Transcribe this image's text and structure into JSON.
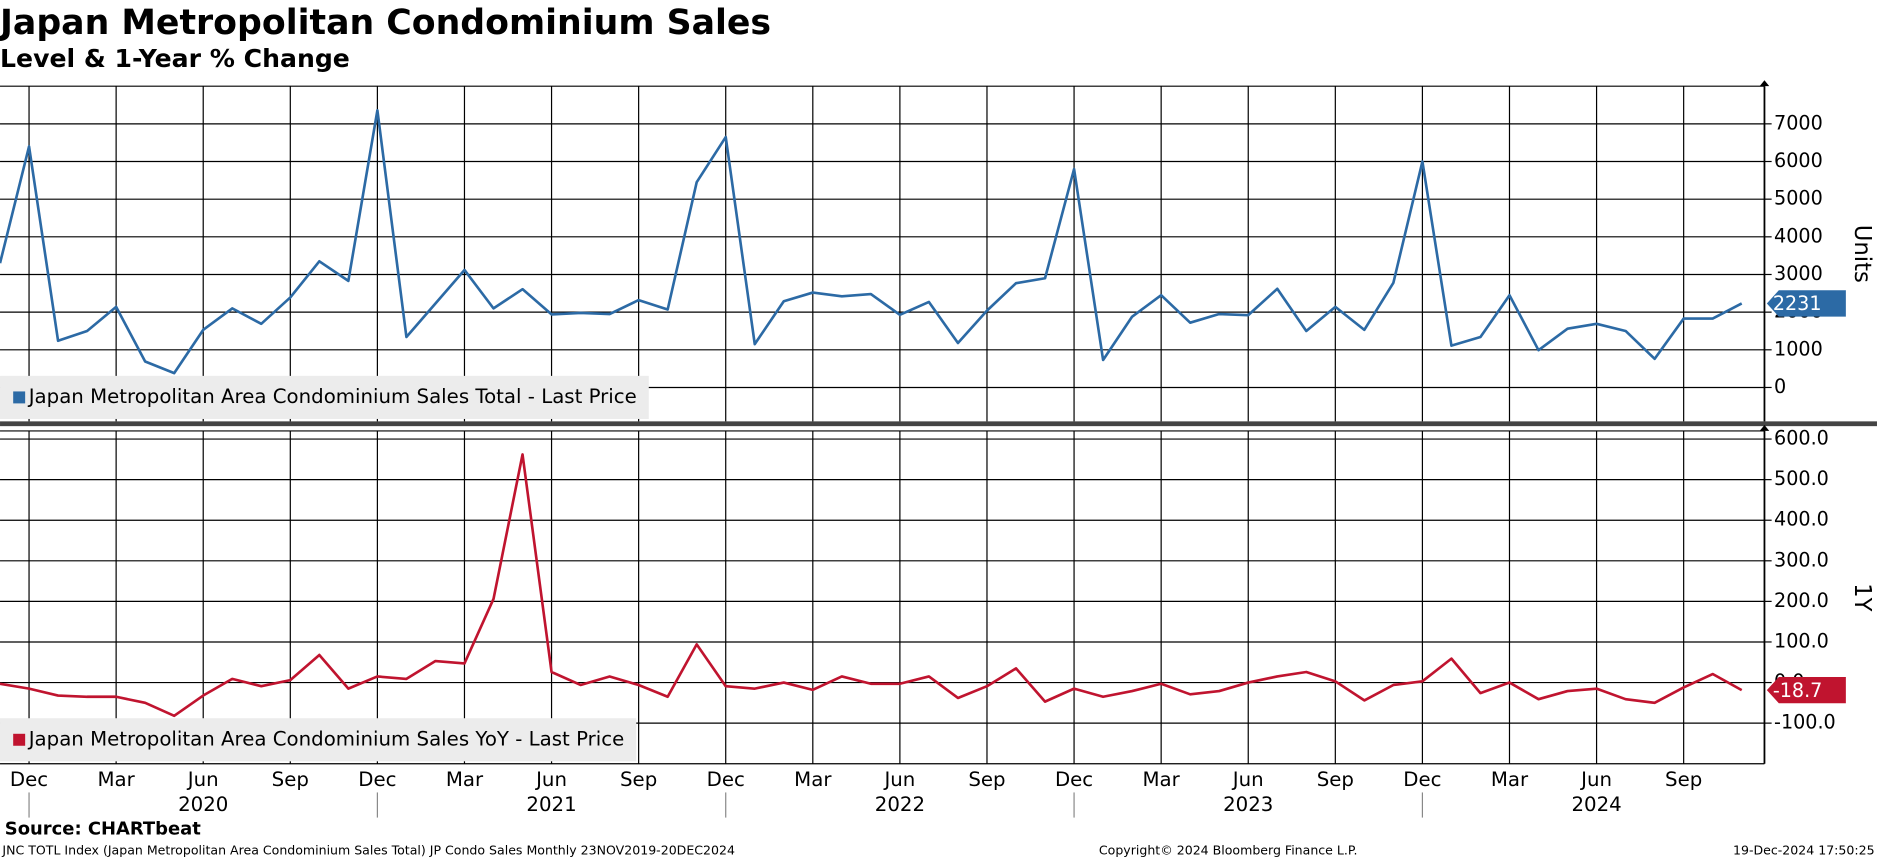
{
  "chart_data": [
    {
      "type": "line",
      "title": "Japan Metropolitan Condominium Sales",
      "subtitle": "Level & 1-Year % Change",
      "y_label": "Units",
      "series": [
        {
          "name": "Japan Metropolitan Area Condominium Sales Total - Last Price",
          "color": "#2c6aa5",
          "values": [
            3300,
            6400,
            1240,
            1500,
            2140,
            690,
            380,
            1530,
            2100,
            1690,
            2390,
            3350,
            2830,
            7360,
            1340,
            2230,
            3120,
            2100,
            2610,
            1940,
            1980,
            1950,
            2320,
            2070,
            5450,
            6650,
            1150,
            2290,
            2520,
            2420,
            2480,
            1930,
            2270,
            1180,
            2040,
            2770,
            2900,
            5800,
            730,
            1880,
            2450,
            1720,
            1950,
            1920,
            2620,
            1500,
            2140,
            1530,
            2780,
            6000,
            1110,
            1340,
            2450,
            990,
            1560,
            1690,
            1500,
            760,
            1830,
            1830,
            2231
          ]
        }
      ],
      "ylim": [
        -900,
        8000
      ],
      "yticks": [
        0,
        1000,
        2000,
        3000,
        4000,
        5000,
        6000,
        7000
      ],
      "grid": true,
      "legend": "bottom-left"
    },
    {
      "type": "line",
      "y_label": "1Y",
      "categories": [
        null,
        "Dec",
        null,
        null,
        "Mar",
        null,
        null,
        "Jun",
        null,
        null,
        "Sep",
        null,
        null,
        "Dec",
        null,
        null,
        "Mar",
        null,
        null,
        "Jun",
        null,
        null,
        "Sep",
        null,
        null,
        "Dec",
        null,
        null,
        "Mar",
        null,
        null,
        "Jun",
        null,
        null,
        "Sep",
        null,
        null,
        "Dec",
        null,
        null,
        "Mar",
        null,
        null,
        "Jun",
        null,
        null,
        "Sep",
        null,
        null,
        "Dec",
        null,
        null,
        "Mar",
        null,
        null,
        "Jun",
        null,
        null,
        "Sep",
        null,
        null
      ],
      "year_labels": [
        "2020",
        "2021",
        "2022",
        "2023",
        "2024"
      ],
      "series": [
        {
          "name": "Japan Metropolitan Area Condominium Sales YoY - Last Price",
          "color": "#c0142f",
          "values": [
            -3,
            -15,
            -32,
            -35,
            -35,
            -50,
            -82,
            -32,
            9,
            -9,
            6,
            68,
            -15,
            15,
            9,
            53,
            47,
            206,
            562,
            26,
            -6,
            15,
            -6,
            -35,
            94,
            -9,
            -15,
            0,
            -18,
            15,
            -3,
            -3,
            15,
            -38,
            -9,
            35,
            -47,
            -15,
            -35,
            -21,
            -3,
            -29,
            -21,
            0,
            15,
            26,
            3,
            -44,
            -6,
            3,
            59,
            -26,
            0,
            -41,
            -21,
            -15,
            -41,
            -50,
            -12,
            21,
            -18.7
          ]
        }
      ],
      "ylim": [
        -200,
        620
      ],
      "yticks": [
        {
          "value": -100,
          "label": "-100.0"
        },
        {
          "value": 0,
          "label": "0.0"
        },
        {
          "value": 100,
          "label": "100.0"
        },
        {
          "value": 200,
          "label": "200.0"
        },
        {
          "value": 300,
          "label": "300.0"
        },
        {
          "value": 400,
          "label": "400.0"
        },
        {
          "value": 500,
          "label": "500.0"
        },
        {
          "value": 600,
          "label": "600.0"
        }
      ],
      "grid": true,
      "legend": "bottom-left"
    }
  ],
  "footer": {
    "source": "Source: CHARTbeat",
    "description": "JNC TOTL Index (Japan Metropolitan Area Condominium Sales Total) JP Condo Sales  Monthly 23NOV2019-20DEC2024",
    "copyright": "Copyright© 2024 Bloomberg Finance L.P.",
    "timestamp": "19-Dec-2024 17:50:25"
  }
}
